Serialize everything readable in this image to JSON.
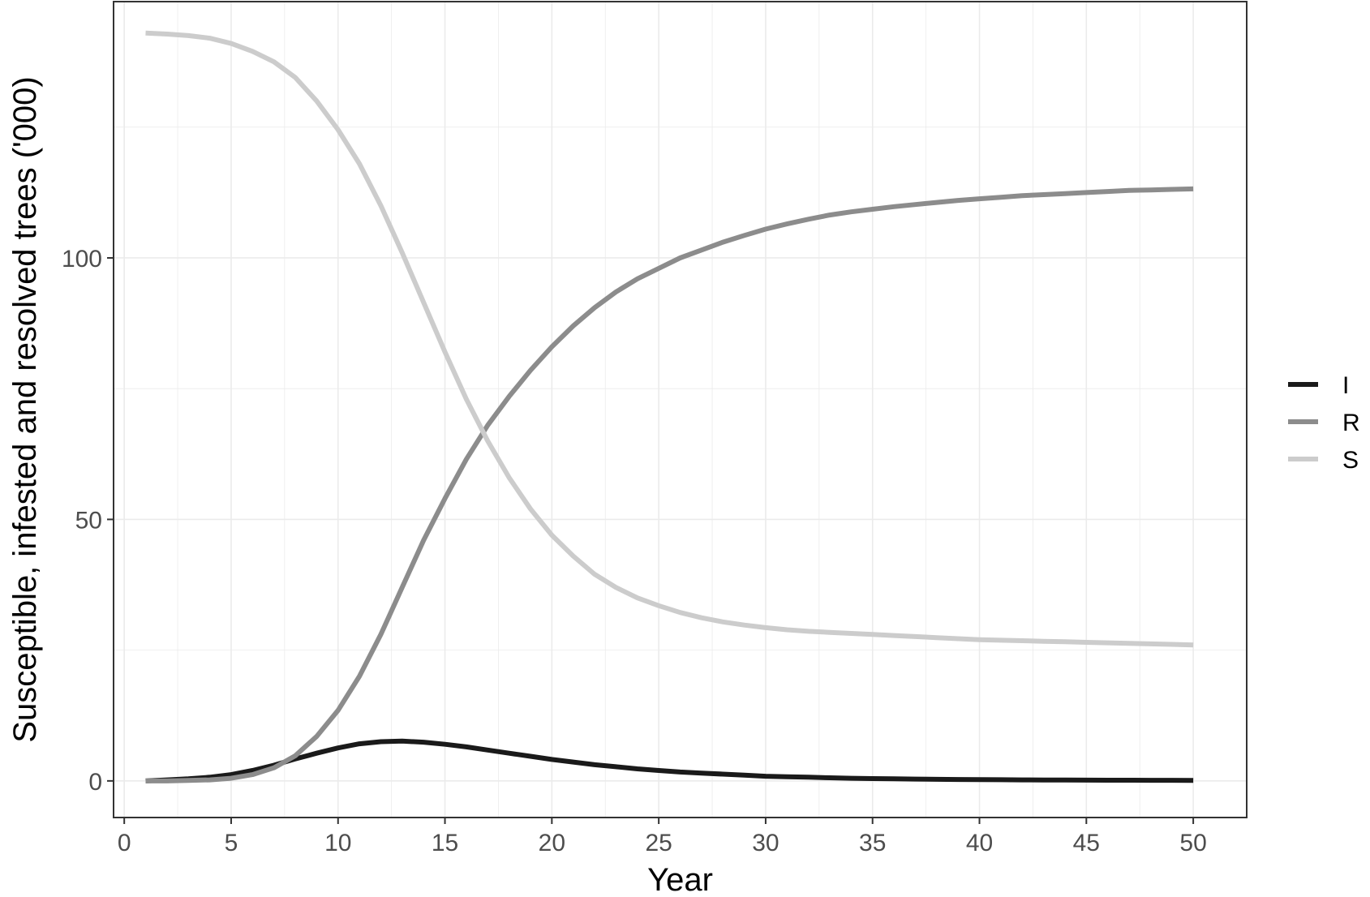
{
  "chart_data": {
    "type": "line",
    "title": "",
    "xlabel": "Year",
    "ylabel": "Susceptible, infested and resolved trees ('000)",
    "xlim": [
      -0.5,
      52.5
    ],
    "ylim": [
      -7,
      149
    ],
    "x_ticks": [
      0,
      5,
      10,
      15,
      20,
      25,
      30,
      35,
      40,
      45,
      50
    ],
    "y_ticks": [
      0,
      50,
      100
    ],
    "grid": true,
    "legend_position": "right",
    "x": [
      1,
      2,
      3,
      4,
      5,
      6,
      7,
      8,
      9,
      10,
      11,
      12,
      13,
      14,
      15,
      16,
      17,
      18,
      19,
      20,
      21,
      22,
      23,
      24,
      25,
      26,
      27,
      28,
      29,
      30,
      31,
      32,
      33,
      34,
      35,
      36,
      37,
      38,
      39,
      40,
      41,
      42,
      43,
      44,
      45,
      46,
      47,
      48,
      49,
      50
    ],
    "series": [
      {
        "name": "I",
        "color": "#1a1a1a",
        "values": [
          0,
          0.2,
          0.4,
          0.7,
          1.2,
          2.0,
          3.0,
          4.2,
          5.3,
          6.3,
          7.1,
          7.5,
          7.6,
          7.4,
          7.0,
          6.5,
          5.9,
          5.3,
          4.7,
          4.1,
          3.6,
          3.1,
          2.7,
          2.3,
          2.0,
          1.7,
          1.5,
          1.3,
          1.1,
          0.9,
          0.8,
          0.7,
          0.6,
          0.5,
          0.45,
          0.4,
          0.35,
          0.3,
          0.27,
          0.25,
          0.22,
          0.2,
          0.18,
          0.16,
          0.15,
          0.14,
          0.13,
          0.12,
          0.11,
          0.1
        ]
      },
      {
        "name": "R",
        "color": "#8c8c8c",
        "values": [
          0,
          0,
          0.1,
          0.2,
          0.5,
          1.2,
          2.5,
          4.8,
          8.5,
          13.5,
          20,
          28,
          37,
          46,
          54,
          61.5,
          68,
          73.5,
          78.5,
          83,
          87,
          90.5,
          93.5,
          96,
          98,
          100,
          101.5,
          103,
          104.3,
          105.5,
          106.5,
          107.4,
          108.2,
          108.8,
          109.3,
          109.8,
          110.2,
          110.6,
          111,
          111.3,
          111.6,
          111.9,
          112.1,
          112.3,
          112.5,
          112.7,
          112.9,
          113,
          113.1,
          113.2
        ]
      },
      {
        "name": "S",
        "color": "#cccccc",
        "values": [
          143,
          142.8,
          142.5,
          142,
          141,
          139.5,
          137.5,
          134.5,
          130,
          124.5,
          118,
          110,
          101,
          91.5,
          82,
          73,
          65,
          58,
          52,
          47,
          43,
          39.5,
          37,
          35,
          33.5,
          32.2,
          31.2,
          30.4,
          29.8,
          29.3,
          28.9,
          28.6,
          28.4,
          28.2,
          28,
          27.8,
          27.6,
          27.4,
          27.2,
          27,
          26.9,
          26.8,
          26.7,
          26.6,
          26.5,
          26.4,
          26.3,
          26.2,
          26.1,
          26
        ]
      }
    ]
  }
}
